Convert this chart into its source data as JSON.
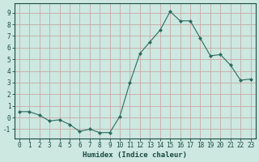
{
  "x": [
    0,
    1,
    2,
    3,
    4,
    5,
    6,
    7,
    8,
    9,
    10,
    11,
    12,
    13,
    14,
    15,
    16,
    17,
    18,
    19,
    20,
    21,
    22,
    23
  ],
  "y": [
    0.5,
    0.5,
    0.2,
    -0.3,
    -0.2,
    -0.6,
    -1.2,
    -1.0,
    -1.3,
    -1.3,
    0.1,
    3.0,
    5.5,
    6.5,
    7.5,
    9.1,
    8.3,
    8.3,
    6.8,
    5.3,
    5.4,
    4.5,
    3.2,
    3.3
  ],
  "line_color": "#2d6b5e",
  "marker": "D",
  "marker_size": 2.0,
  "bg_color": "#cce8e0",
  "grid_color": "#c8a8a8",
  "xlabel": "Humidex (Indice chaleur)",
  "ylim": [
    -1.8,
    9.8
  ],
  "xlim": [
    -0.5,
    23.5
  ],
  "yticks": [
    -1,
    0,
    1,
    2,
    3,
    4,
    5,
    6,
    7,
    8,
    9
  ],
  "xticks": [
    0,
    1,
    2,
    3,
    4,
    5,
    6,
    7,
    8,
    9,
    10,
    11,
    12,
    13,
    14,
    15,
    16,
    17,
    18,
    19,
    20,
    21,
    22,
    23
  ],
  "font_color": "#1a4a40",
  "tick_fontsize": 5.5,
  "xlabel_fontsize": 6.5
}
